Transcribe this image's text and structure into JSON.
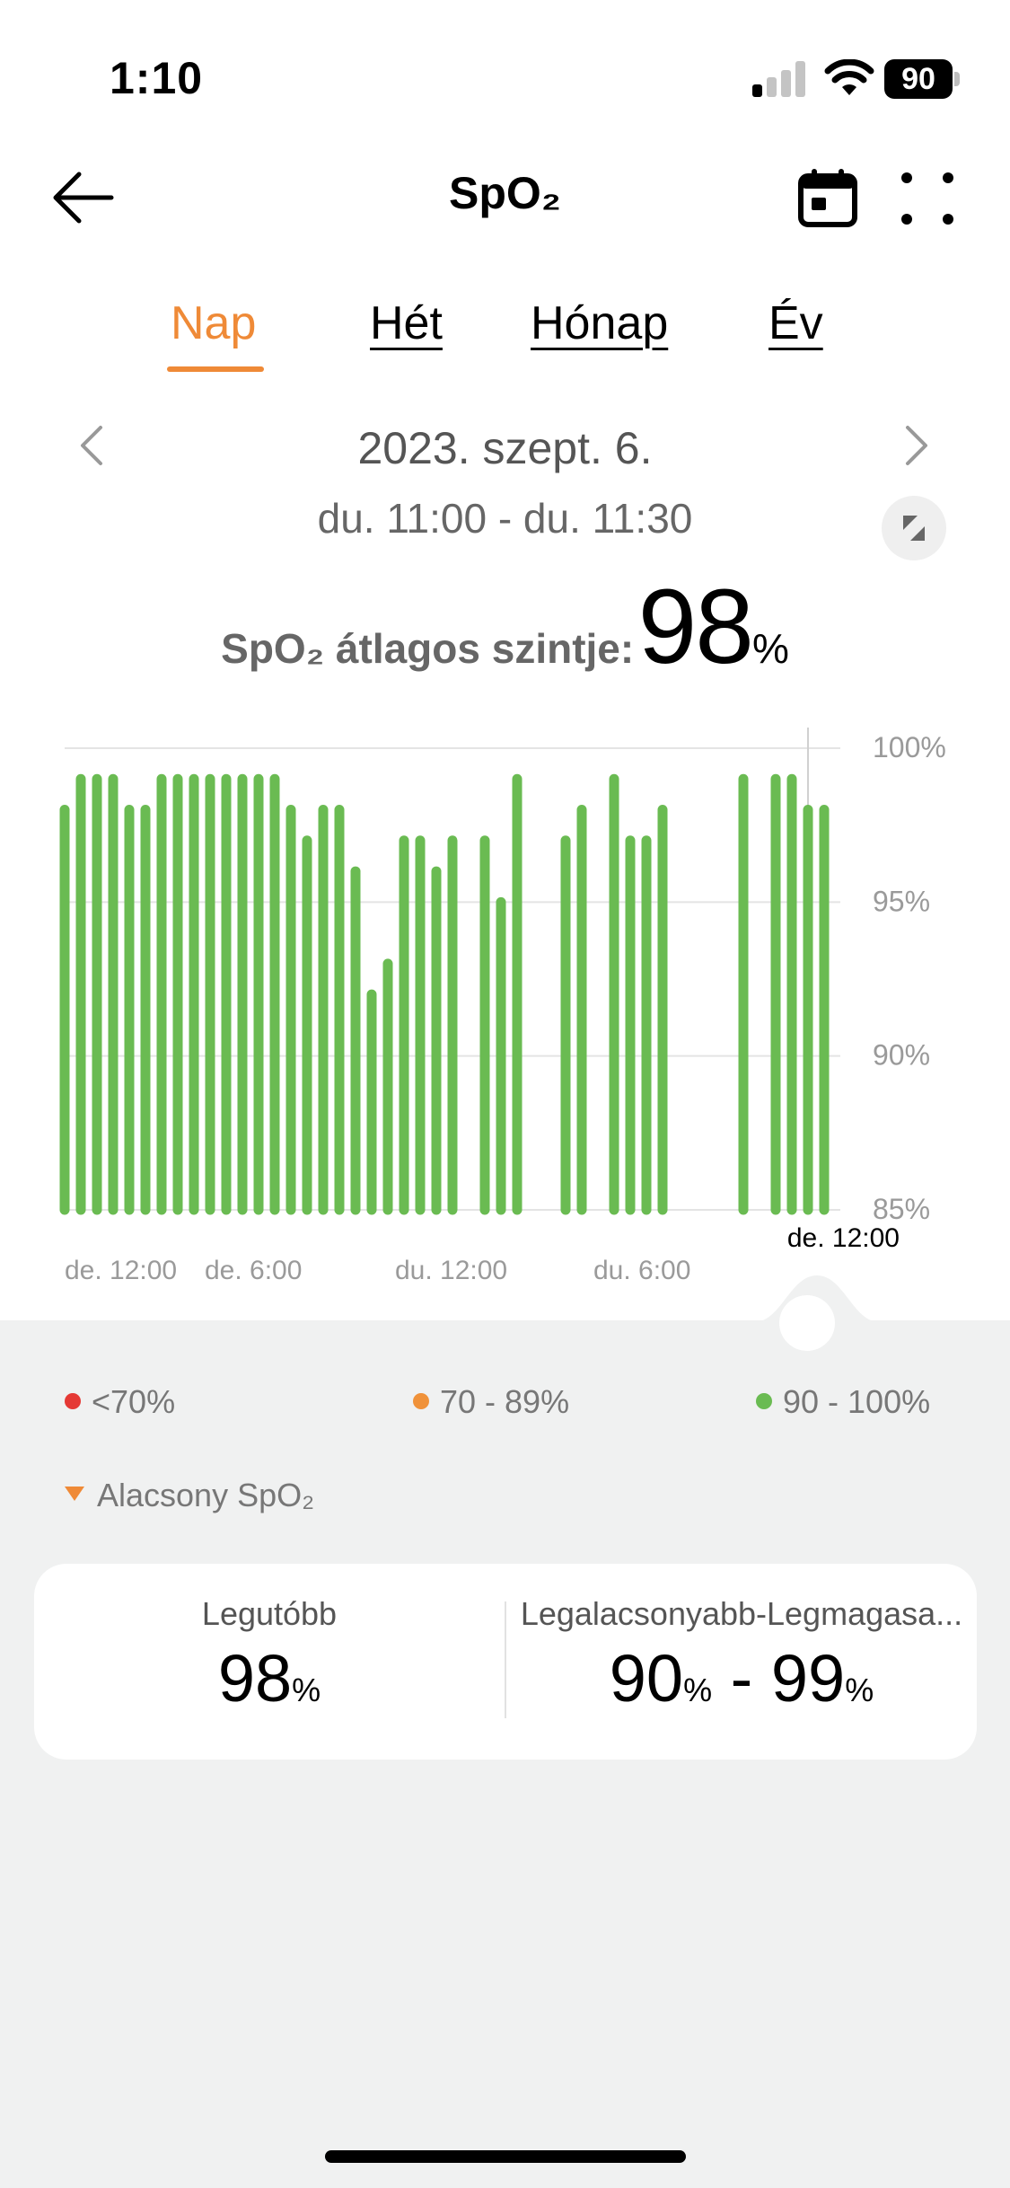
{
  "status_bar": {
    "time": "1:10",
    "battery": "90"
  },
  "header": {
    "title": "SpO₂"
  },
  "tabs": [
    {
      "label": "Nap",
      "active": true
    },
    {
      "label": "Hét",
      "active": false
    },
    {
      "label": "Hónap",
      "active": false
    },
    {
      "label": "Év",
      "active": false
    }
  ],
  "date_nav": {
    "date": "2023. szept. 6.",
    "range": "du. 11:00 - du. 11:30"
  },
  "average": {
    "label": "SpO₂ átlagos szintje:",
    "value": "98",
    "unit": "%"
  },
  "chart_data": {
    "type": "bar",
    "title": "",
    "xlabel": "",
    "ylabel": "",
    "ylim": [
      85,
      100
    ],
    "y_ticks": [
      "100%",
      "95%",
      "90%",
      "85%"
    ],
    "y_tick_values": [
      100,
      95,
      90,
      85
    ],
    "x_tick_labels": [
      "de. 12:00",
      "de. 6:00",
      "du. 12:00",
      "du. 6:00"
    ],
    "x_end_label": "de. 12:00",
    "bar_color": "#6abb52",
    "grid": true,
    "legend": "bottom",
    "values": [
      98,
      99,
      99,
      99,
      98,
      98,
      99,
      99,
      99,
      99,
      99,
      99,
      99,
      99,
      98,
      97,
      98,
      98,
      96,
      92,
      93,
      97,
      97,
      96,
      97,
      null,
      97,
      95,
      99,
      null,
      null,
      97,
      98,
      null,
      99,
      97,
      97,
      98,
      null,
      null,
      null,
      null,
      99,
      null,
      99,
      99,
      98,
      98
    ]
  },
  "legend": [
    {
      "label": "<70%",
      "color": "#e53935"
    },
    {
      "label": "70 - 89%",
      "color": "#f0923a"
    },
    {
      "label": "90 - 100%",
      "color": "#6abb52"
    }
  ],
  "low_marker": {
    "label": "Alacsony SpO₂",
    "color": "#ef8a37"
  },
  "summary": {
    "recent": {
      "label": "Legutóbb",
      "value": "98",
      "unit": "%"
    },
    "range": {
      "label": "Legalacsonyabb-Legmagasa...",
      "low": "90",
      "high": "99",
      "unit": "%",
      "separator": " - "
    }
  }
}
